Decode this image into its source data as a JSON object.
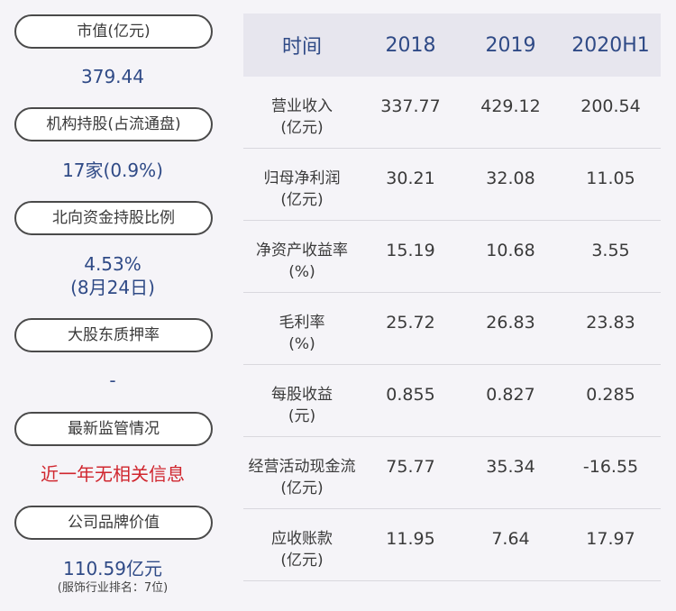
{
  "left": {
    "items": [
      {
        "label": "市值(亿元)",
        "value": "379.44"
      },
      {
        "label": "机构持股(占流通盘)",
        "value": "17家(0.9%)"
      },
      {
        "label": "北向资金持股比例",
        "value": "4.53%",
        "value2": "(8月24日)"
      },
      {
        "label": "大股东质押率",
        "value": "-"
      },
      {
        "label": "最新监管情况",
        "value": "近一年无相关信息"
      },
      {
        "label": "公司品牌价值",
        "value": "110.59亿元",
        "note": "(服饰行业排名：7位)"
      }
    ]
  },
  "table": {
    "headers": [
      "时间",
      "2018",
      "2019",
      "2020H1"
    ],
    "rows": [
      {
        "label": "营业收入",
        "unit": "(亿元)",
        "values": [
          "337.77",
          "429.12",
          "200.54"
        ]
      },
      {
        "label": "归母净利润",
        "unit": "(亿元)",
        "values": [
          "30.21",
          "32.08",
          "11.05"
        ]
      },
      {
        "label": "净资产收益率",
        "unit": "(%)",
        "values": [
          "15.19",
          "10.68",
          "3.55"
        ]
      },
      {
        "label": "毛利率",
        "unit": "(%)",
        "values": [
          "25.72",
          "26.83",
          "23.83"
        ]
      },
      {
        "label": "每股收益",
        "unit": "(元)",
        "values": [
          "0.855",
          "0.827",
          "0.285"
        ]
      },
      {
        "label": "经营活动现金流",
        "unit": "(亿元)",
        "values": [
          "75.77",
          "35.34",
          "-16.55"
        ]
      },
      {
        "label": "应收账款",
        "unit": "(亿元)",
        "values": [
          "11.95",
          "7.64",
          "17.97"
        ]
      }
    ]
  },
  "colors": {
    "value_blue": "#2f4a86",
    "alert_red": "#d0262e",
    "header_bg": "#e7e6ee",
    "page_bg": "#f5f4f8"
  }
}
